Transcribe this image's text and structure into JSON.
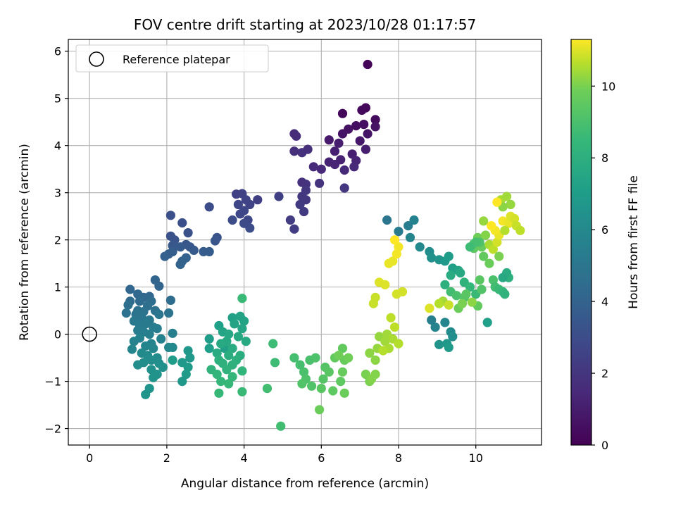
{
  "chart_data": {
    "type": "scatter",
    "title": "FOV centre drift starting at 2023/10/28 01:17:57",
    "xlabel": "Angular distance from reference (arcmin)",
    "ylabel": "Rotation from reference (arcmin)",
    "xlim": [
      -0.55,
      11.7
    ],
    "ylim": [
      -2.35,
      6.25
    ],
    "xticks": [
      0,
      2,
      4,
      6,
      8,
      10
    ],
    "yticks": [
      -2,
      -1,
      0,
      1,
      2,
      3,
      4,
      5,
      6
    ],
    "grid": true,
    "colormap": "viridis",
    "colorbar": {
      "label": "Hours from first FF file",
      "range": [
        0,
        11.3
      ],
      "ticks": [
        0,
        2,
        4,
        6,
        8,
        10
      ]
    },
    "legend": {
      "placement": "top-left",
      "entries": [
        {
          "label": "Reference platepar",
          "marker": "open-circle"
        }
      ]
    },
    "reference": {
      "x": 0,
      "y": 0
    },
    "points": [
      [
        7.2,
        5.72,
        0.1
      ],
      [
        7.15,
        4.8,
        0.2
      ],
      [
        7.05,
        4.75,
        0.3
      ],
      [
        6.55,
        4.68,
        0.3
      ],
      [
        7.4,
        4.55,
        0.4
      ],
      [
        7.1,
        4.45,
        0.5
      ],
      [
        6.9,
        4.42,
        0.5
      ],
      [
        7.4,
        4.4,
        0.6
      ],
      [
        6.7,
        4.35,
        0.6
      ],
      [
        6.55,
        4.25,
        0.7
      ],
      [
        7.2,
        4.25,
        0.7
      ],
      [
        7.0,
        4.1,
        0.8
      ],
      [
        6.2,
        4.12,
        0.9
      ],
      [
        6.45,
        4.05,
        1.0
      ],
      [
        7.15,
        3.92,
        1.0
      ],
      [
        6.35,
        3.88,
        1.1
      ],
      [
        6.8,
        3.82,
        1.1
      ],
      [
        6.5,
        3.7,
        1.2
      ],
      [
        6.2,
        3.65,
        1.2
      ],
      [
        6.9,
        3.68,
        1.3
      ],
      [
        6.35,
        3.6,
        1.3
      ],
      [
        6.85,
        3.55,
        1.4
      ],
      [
        6.0,
        3.5,
        1.4
      ],
      [
        6.6,
        3.48,
        1.5
      ],
      [
        5.8,
        3.55,
        1.5
      ],
      [
        5.3,
        4.25,
        1.6
      ],
      [
        5.35,
        4.2,
        1.6
      ],
      [
        5.65,
        3.92,
        1.7
      ],
      [
        5.3,
        3.88,
        1.7
      ],
      [
        5.5,
        3.85,
        1.8
      ],
      [
        5.5,
        3.22,
        1.8
      ],
      [
        5.6,
        3.18,
        1.9
      ],
      [
        5.95,
        3.2,
        1.9
      ],
      [
        6.6,
        3.1,
        2.0
      ],
      [
        5.6,
        3.05,
        2.0
      ],
      [
        5.5,
        2.92,
        2.1
      ],
      [
        5.6,
        2.85,
        2.1
      ],
      [
        5.45,
        2.75,
        2.2
      ],
      [
        5.55,
        2.6,
        2.2
      ],
      [
        5.2,
        2.42,
        2.3
      ],
      [
        5.3,
        2.23,
        2.3
      ],
      [
        4.9,
        2.92,
        2.4
      ],
      [
        4.35,
        2.85,
        2.4
      ],
      [
        3.95,
        2.98,
        2.5
      ],
      [
        3.8,
        2.97,
        2.5
      ],
      [
        4.05,
        2.85,
        2.6
      ],
      [
        4.15,
        2.75,
        2.6
      ],
      [
        3.85,
        2.75,
        2.7
      ],
      [
        4.0,
        2.62,
        2.7
      ],
      [
        3.9,
        2.55,
        2.8
      ],
      [
        4.1,
        2.42,
        2.8
      ],
      [
        3.7,
        2.42,
        2.9
      ],
      [
        4.0,
        2.35,
        2.9
      ],
      [
        4.15,
        2.25,
        3.0
      ],
      [
        3.1,
        2.7,
        3.0
      ],
      [
        2.4,
        2.36,
        3.1
      ],
      [
        2.1,
        2.52,
        3.1
      ],
      [
        2.55,
        2.15,
        3.2
      ],
      [
        2.1,
        2.08,
        3.2
      ],
      [
        2.2,
        2.0,
        3.3
      ],
      [
        3.3,
        2.05,
        3.3
      ],
      [
        3.25,
        1.98,
        3.4
      ],
      [
        2.5,
        1.9,
        3.4
      ],
      [
        2.15,
        1.88,
        3.5
      ],
      [
        2.6,
        1.85,
        3.5
      ],
      [
        2.35,
        1.85,
        3.6
      ],
      [
        2.7,
        1.78,
        3.6
      ],
      [
        3.1,
        1.75,
        3.7
      ],
      [
        2.95,
        1.75,
        3.7
      ],
      [
        2.15,
        1.75,
        3.8
      ],
      [
        2.05,
        1.7,
        3.8
      ],
      [
        1.95,
        1.65,
        3.9
      ],
      [
        2.5,
        1.62,
        3.9
      ],
      [
        2.4,
        1.55,
        4.0
      ],
      [
        2.35,
        1.48,
        4.0
      ],
      [
        1.7,
        1.15,
        4.1
      ],
      [
        1.8,
        1.02,
        4.1
      ],
      [
        1.05,
        0.95,
        4.2
      ],
      [
        1.55,
        0.8,
        4.2
      ],
      [
        1.25,
        0.85,
        4.3
      ],
      [
        1.4,
        0.78,
        4.3
      ],
      [
        1.05,
        0.7,
        4.4
      ],
      [
        1.3,
        0.7,
        4.4
      ],
      [
        1.6,
        0.7,
        4.5
      ],
      [
        2.1,
        0.72,
        4.5
      ],
      [
        1.0,
        0.62,
        4.6
      ],
      [
        1.5,
        0.6,
        4.6
      ],
      [
        1.25,
        0.5,
        4.7
      ],
      [
        1.7,
        0.5,
        4.7
      ],
      [
        1.4,
        0.48,
        4.8
      ],
      [
        0.95,
        0.45,
        4.8
      ],
      [
        2.05,
        0.45,
        4.9
      ],
      [
        1.2,
        0.42,
        4.9
      ],
      [
        1.8,
        0.42,
        5.0
      ],
      [
        1.35,
        0.35,
        5.0
      ],
      [
        1.55,
        0.3,
        5.1
      ],
      [
        1.15,
        0.28,
        5.1
      ],
      [
        1.45,
        0.22,
        5.2
      ],
      [
        1.3,
        0.18,
        5.2
      ],
      [
        1.65,
        0.15,
        5.3
      ],
      [
        1.25,
        0.08,
        5.3
      ],
      [
        1.75,
        0.12,
        5.4
      ],
      [
        1.4,
        0.05,
        5.4
      ],
      [
        1.55,
        0.0,
        5.5
      ],
      [
        2.15,
        0.02,
        5.5
      ],
      [
        1.3,
        -0.08,
        5.6
      ],
      [
        1.85,
        -0.1,
        5.6
      ],
      [
        1.15,
        -0.15,
        5.7
      ],
      [
        1.6,
        -0.2,
        5.7
      ],
      [
        1.1,
        -0.32,
        5.8
      ],
      [
        1.45,
        -0.25,
        5.8
      ],
      [
        1.65,
        -0.3,
        5.9
      ],
      [
        2.05,
        -0.28,
        5.9
      ],
      [
        2.15,
        -0.28,
        6.0
      ],
      [
        1.35,
        -0.4,
        6.0
      ],
      [
        1.5,
        -0.45,
        6.1
      ],
      [
        1.75,
        -0.5,
        6.1
      ],
      [
        1.6,
        -0.55,
        6.2
      ],
      [
        1.4,
        -0.6,
        6.2
      ],
      [
        1.8,
        -0.62,
        6.3
      ],
      [
        1.25,
        -0.65,
        6.3
      ],
      [
        1.9,
        -0.7,
        6.4
      ],
      [
        1.6,
        -0.75,
        6.4
      ],
      [
        1.75,
        -0.85,
        6.5
      ],
      [
        1.65,
        -0.92,
        6.5
      ],
      [
        1.55,
        -1.15,
        6.6
      ],
      [
        1.45,
        -1.28,
        6.6
      ],
      [
        2.4,
        -1.0,
        6.7
      ],
      [
        2.55,
        -0.35,
        6.7
      ],
      [
        2.6,
        -0.5,
        6.8
      ],
      [
        2.4,
        -0.6,
        6.8
      ],
      [
        2.55,
        -0.7,
        6.9
      ],
      [
        2.5,
        -0.85,
        6.9
      ],
      [
        2.15,
        -0.55,
        7.0
      ],
      [
        3.1,
        -0.1,
        7.0
      ],
      [
        3.1,
        -0.3,
        7.1
      ],
      [
        3.35,
        0.18,
        7.1
      ],
      [
        3.5,
        -0.3,
        7.2
      ],
      [
        3.7,
        0.35,
        7.2
      ],
      [
        3.9,
        0.38,
        7.3
      ],
      [
        4.0,
        0.28,
        7.3
      ],
      [
        3.45,
        0.05,
        7.4
      ],
      [
        3.75,
        0.22,
        7.4
      ],
      [
        3.95,
        0.12,
        7.5
      ],
      [
        3.6,
        0.0,
        7.5
      ],
      [
        3.85,
        -0.05,
        7.6
      ],
      [
        3.55,
        -0.15,
        7.6
      ],
      [
        4.05,
        -0.15,
        7.7
      ],
      [
        3.4,
        -0.2,
        7.7
      ],
      [
        3.7,
        -0.3,
        7.8
      ],
      [
        3.3,
        -0.4,
        7.8
      ],
      [
        3.6,
        -0.45,
        7.9
      ],
      [
        3.9,
        -0.45,
        7.9
      ],
      [
        3.35,
        -0.55,
        8.0
      ],
      [
        3.8,
        -0.55,
        8.0
      ],
      [
        3.45,
        -0.62,
        8.1
      ],
      [
        3.7,
        -0.65,
        8.1
      ],
      [
        3.15,
        -0.75,
        8.2
      ],
      [
        3.55,
        -0.75,
        8.2
      ],
      [
        3.95,
        -0.78,
        8.3
      ],
      [
        3.3,
        -0.85,
        8.3
      ],
      [
        3.7,
        -0.9,
        8.4
      ],
      [
        3.4,
        -1.0,
        8.4
      ],
      [
        3.6,
        -1.05,
        8.5
      ],
      [
        3.35,
        -1.25,
        8.5
      ],
      [
        3.95,
        -1.22,
        8.6
      ],
      [
        3.95,
        0.76,
        8.6
      ],
      [
        4.75,
        -0.2,
        8.7
      ],
      [
        4.8,
        -0.6,
        8.7
      ],
      [
        4.6,
        -1.15,
        8.8
      ],
      [
        4.95,
        -1.95,
        8.8
      ],
      [
        5.3,
        -0.5,
        8.9
      ],
      [
        5.45,
        -0.65,
        8.9
      ],
      [
        5.55,
        -0.8,
        9.0
      ],
      [
        5.7,
        -0.55,
        9.0
      ],
      [
        5.85,
        -0.5,
        9.1
      ],
      [
        5.6,
        -0.95,
        9.1
      ],
      [
        5.75,
        -1.1,
        9.2
      ],
      [
        5.5,
        -1.05,
        9.2
      ],
      [
        6.1,
        -0.7,
        9.3
      ],
      [
        6.05,
        -0.95,
        9.3
      ],
      [
        6.2,
        -0.8,
        9.4
      ],
      [
        6.0,
        -1.15,
        9.4
      ],
      [
        6.3,
        -1.2,
        9.5
      ],
      [
        6.5,
        -1.0,
        9.5
      ],
      [
        6.35,
        -0.5,
        9.6
      ],
      [
        6.55,
        -0.3,
        9.6
      ],
      [
        6.6,
        -0.55,
        9.7
      ],
      [
        6.55,
        -0.8,
        9.7
      ],
      [
        6.6,
        -1.25,
        9.8
      ],
      [
        5.95,
        -1.6,
        9.8
      ],
      [
        6.7,
        -0.5,
        9.9
      ],
      [
        6.45,
        -0.45,
        9.9
      ],
      [
        7.15,
        -0.85,
        10.0
      ],
      [
        7.25,
        -1.0,
        10.0
      ],
      [
        7.3,
        -0.95,
        10.1
      ],
      [
        7.4,
        -0.85,
        10.1
      ],
      [
        7.4,
        -0.55,
        10.2
      ],
      [
        7.25,
        -0.4,
        10.2
      ],
      [
        7.45,
        -0.3,
        10.3
      ],
      [
        7.5,
        -0.05,
        10.3
      ],
      [
        7.65,
        -0.15,
        10.4
      ],
      [
        7.7,
        0.0,
        10.4
      ],
      [
        7.85,
        -0.1,
        10.5
      ],
      [
        7.75,
        -0.3,
        10.5
      ],
      [
        7.6,
        -0.35,
        10.6
      ],
      [
        8.0,
        -0.2,
        10.6
      ],
      [
        7.9,
        0.15,
        10.7
      ],
      [
        7.8,
        0.35,
        10.7
      ],
      [
        7.35,
        0.65,
        10.8
      ],
      [
        7.4,
        0.78,
        10.8
      ],
      [
        7.95,
        0.85,
        10.9
      ],
      [
        8.1,
        0.9,
        10.9
      ],
      [
        7.5,
        1.1,
        11.0
      ],
      [
        7.65,
        1.05,
        11.0
      ],
      [
        7.75,
        1.5,
        11.1
      ],
      [
        7.85,
        1.55,
        11.1
      ],
      [
        7.95,
        1.7,
        11.2
      ],
      [
        8.0,
        1.85,
        11.2
      ],
      [
        7.9,
        2.0,
        11.3
      ],
      [
        7.7,
        2.42,
        5.0
      ],
      [
        8.0,
        2.18,
        5.2
      ],
      [
        8.25,
        2.3,
        5.4
      ],
      [
        8.4,
        2.42,
        5.6
      ],
      [
        8.3,
        2.05,
        5.8
      ],
      [
        8.55,
        1.85,
        6.0
      ],
      [
        8.8,
        1.75,
        6.2
      ],
      [
        8.85,
        1.62,
        6.4
      ],
      [
        9.05,
        1.58,
        6.6
      ],
      [
        9.2,
        1.55,
        6.8
      ],
      [
        9.3,
        1.65,
        7.0
      ],
      [
        9.4,
        1.4,
        7.2
      ],
      [
        9.55,
        1.35,
        7.4
      ],
      [
        9.6,
        1.3,
        7.6
      ],
      [
        9.35,
        1.25,
        7.8
      ],
      [
        9.2,
        1.05,
        8.0
      ],
      [
        9.7,
        1.1,
        8.2
      ],
      [
        9.85,
        1.0,
        8.4
      ],
      [
        10.0,
        0.85,
        8.6
      ],
      [
        9.35,
        0.9,
        8.8
      ],
      [
        9.5,
        0.82,
        9.0
      ],
      [
        9.7,
        0.78,
        9.2
      ],
      [
        9.75,
        0.85,
        9.4
      ],
      [
        10.05,
        0.6,
        9.6
      ],
      [
        9.55,
        0.55,
        9.8
      ],
      [
        9.65,
        0.65,
        10.0
      ],
      [
        9.9,
        0.68,
        10.2
      ],
      [
        9.15,
        0.7,
        10.4
      ],
      [
        9.05,
        0.65,
        10.6
      ],
      [
        9.3,
        0.62,
        10.8
      ],
      [
        8.8,
        0.55,
        11.0
      ],
      [
        8.85,
        0.3,
        5.5
      ],
      [
        8.95,
        0.15,
        5.7
      ],
      [
        9.2,
        0.25,
        5.9
      ],
      [
        9.35,
        0.05,
        6.1
      ],
      [
        9.4,
        -0.05,
        6.3
      ],
      [
        9.05,
        -0.22,
        6.5
      ],
      [
        9.25,
        -0.2,
        6.7
      ],
      [
        9.3,
        -0.28,
        6.9
      ],
      [
        10.3,
        0.25,
        7.1
      ],
      [
        9.95,
        1.82,
        9.5
      ],
      [
        10.15,
        1.85,
        9.7
      ],
      [
        10.05,
        2.05,
        9.9
      ],
      [
        10.25,
        2.1,
        10.1
      ],
      [
        10.2,
        2.4,
        10.3
      ],
      [
        10.35,
        1.9,
        10.5
      ],
      [
        10.45,
        1.8,
        10.7
      ],
      [
        10.55,
        1.95,
        10.9
      ],
      [
        10.6,
        2.1,
        11.1
      ],
      [
        10.5,
        2.2,
        11.2
      ],
      [
        10.4,
        2.3,
        11.3
      ],
      [
        10.7,
        2.4,
        11.2
      ],
      [
        10.85,
        2.35,
        11.1
      ],
      [
        10.9,
        2.5,
        11.0
      ],
      [
        11.0,
        2.45,
        10.9
      ],
      [
        11.05,
        2.3,
        10.8
      ],
      [
        11.15,
        2.2,
        10.7
      ],
      [
        10.75,
        2.2,
        10.6
      ],
      [
        10.65,
        2.85,
        10.5
      ],
      [
        10.8,
        2.92,
        10.4
      ],
      [
        10.9,
        2.75,
        10.3
      ],
      [
        10.7,
        2.7,
        10.2
      ],
      [
        10.55,
        2.8,
        11.3
      ],
      [
        10.6,
        1.65,
        10.0
      ],
      [
        10.35,
        1.5,
        9.8
      ],
      [
        10.2,
        1.65,
        9.6
      ],
      [
        10.1,
        1.15,
        9.4
      ],
      [
        10.15,
        0.95,
        9.2
      ],
      [
        10.45,
        1.15,
        9.0
      ],
      [
        10.5,
        1.0,
        8.8
      ],
      [
        10.6,
        0.95,
        8.6
      ],
      [
        10.7,
        0.9,
        8.4
      ],
      [
        10.75,
        0.85,
        8.2
      ],
      [
        10.85,
        1.2,
        8.0
      ],
      [
        10.8,
        1.3,
        7.8
      ],
      [
        10.7,
        1.2,
        7.6
      ],
      [
        9.95,
        1.92,
        9.3
      ],
      [
        10.1,
        1.95,
        9.1
      ],
      [
        10.0,
        1.95,
        8.9
      ],
      [
        9.85,
        1.85,
        8.7
      ]
    ]
  }
}
